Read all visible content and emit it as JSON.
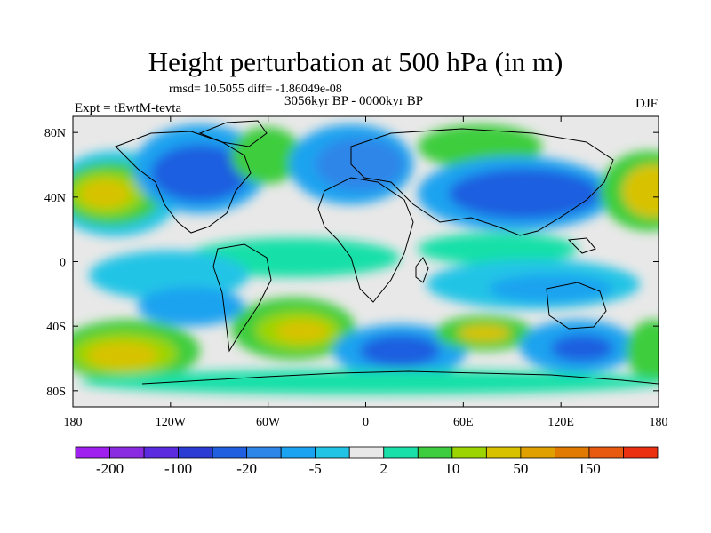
{
  "title": "Height perturbation at 500 hPa (in m)",
  "stats_line": "rmsd= 10.5055 diff= -1.86049e-08",
  "experiment_label": "Expt = tEwtM-tevta",
  "period_label": "3056kyr BP - 0000kyr BP",
  "season_label": "DJF",
  "map_axes": {
    "lon_range": [
      -180,
      180
    ],
    "lat_range": [
      -90,
      90
    ],
    "x_ticks": [
      {
        "value": -180,
        "label": "180"
      },
      {
        "value": -120,
        "label": "120W"
      },
      {
        "value": -60,
        "label": "60W"
      },
      {
        "value": 0,
        "label": "0"
      },
      {
        "value": 60,
        "label": "60E"
      },
      {
        "value": 120,
        "label": "120E"
      },
      {
        "value": 180,
        "label": "180"
      }
    ],
    "y_ticks": [
      {
        "value": 80,
        "label": "80N"
      },
      {
        "value": 40,
        "label": "40N"
      },
      {
        "value": 0,
        "label": "0"
      },
      {
        "value": -40,
        "label": "40S"
      },
      {
        "value": -80,
        "label": "80S"
      }
    ]
  },
  "colorbar": {
    "colors": [
      "#a020f0",
      "#8a2be2",
      "#5b2be0",
      "#2a3cd4",
      "#1f5fe0",
      "#2e86e8",
      "#1aa3f0",
      "#22c4e6",
      "#e8e8e8",
      "#18e0a8",
      "#3ecd3e",
      "#9bd400",
      "#d8c200",
      "#e0a100",
      "#e07a00",
      "#e85a10",
      "#ea3010"
    ],
    "labels": [
      {
        "text": "-200",
        "boundary": 1
      },
      {
        "text": "-100",
        "boundary": 3
      },
      {
        "text": "-20",
        "boundary": 5
      },
      {
        "text": "-5",
        "boundary": 7
      },
      {
        "text": "2",
        "boundary": 9
      },
      {
        "text": "10",
        "boundary": 11
      },
      {
        "text": "50",
        "boundary": 13
      },
      {
        "text": "150",
        "boundary": 15
      }
    ]
  }
}
